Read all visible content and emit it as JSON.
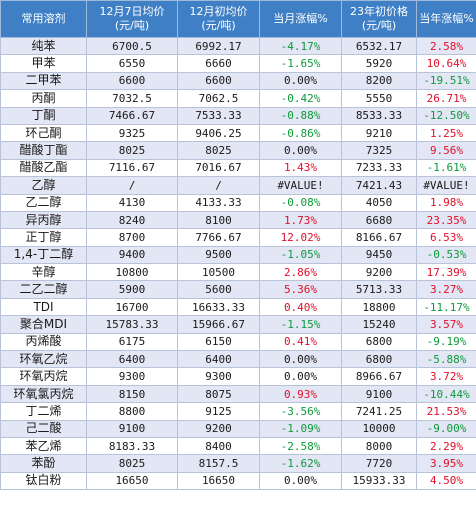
{
  "headers": [
    [
      "常用溶剂"
    ],
    [
      "12月7日均价",
      "(元/吨)"
    ],
    [
      "12月初均价",
      "(元/吨)"
    ],
    [
      "当月涨幅%"
    ],
    [
      "23年初价格",
      "(元/吨)"
    ],
    [
      "当年涨幅%"
    ]
  ],
  "rows": [
    {
      "name": "纯苯",
      "c1": "6700.5",
      "c2": "6992.17",
      "c3": "-4.17%",
      "d3": "down",
      "c4": "6532.17",
      "c5": "2.58%",
      "d5": "up"
    },
    {
      "name": "甲苯",
      "c1": "6550",
      "c2": "6660",
      "c3": "-1.65%",
      "d3": "down",
      "c4": "5920",
      "c5": "10.64%",
      "d5": "up"
    },
    {
      "name": "二甲苯",
      "c1": "6600",
      "c2": "6600",
      "c3": "0.00%",
      "d3": "flat",
      "c4": "8200",
      "c5": "-19.51%",
      "d5": "down"
    },
    {
      "name": "丙酮",
      "c1": "7032.5",
      "c2": "7062.5",
      "c3": "-0.42%",
      "d3": "down",
      "c4": "5550",
      "c5": "26.71%",
      "d5": "up"
    },
    {
      "name": "丁酮",
      "c1": "7466.67",
      "c2": "7533.33",
      "c3": "-0.88%",
      "d3": "down",
      "c4": "8533.33",
      "c5": "-12.50%",
      "d5": "down"
    },
    {
      "name": "环己酮",
      "c1": "9325",
      "c2": "9406.25",
      "c3": "-0.86%",
      "d3": "down",
      "c4": "9210",
      "c5": "1.25%",
      "d5": "up"
    },
    {
      "name": "醋酸丁酯",
      "c1": "8025",
      "c2": "8025",
      "c3": "0.00%",
      "d3": "flat",
      "c4": "7325",
      "c5": "9.56%",
      "d5": "up"
    },
    {
      "name": "醋酸乙酯",
      "c1": "7116.67",
      "c2": "7016.67",
      "c3": "1.43%",
      "d3": "up",
      "c4": "7233.33",
      "c5": "-1.61%",
      "d5": "down"
    },
    {
      "name": "乙醇",
      "c1": "/",
      "c2": "/",
      "c3": "#VALUE!",
      "d3": "flat",
      "c4": "7421.43",
      "c5": "#VALUE!",
      "d5": "flat"
    },
    {
      "name": "乙二醇",
      "c1": "4130",
      "c2": "4133.33",
      "c3": "-0.08%",
      "d3": "down",
      "c4": "4050",
      "c5": "1.98%",
      "d5": "up"
    },
    {
      "name": "异丙醇",
      "c1": "8240",
      "c2": "8100",
      "c3": "1.73%",
      "d3": "up",
      "c4": "6680",
      "c5": "23.35%",
      "d5": "up"
    },
    {
      "name": "正丁醇",
      "c1": "8700",
      "c2": "7766.67",
      "c3": "12.02%",
      "d3": "up",
      "c4": "8166.67",
      "c5": "6.53%",
      "d5": "up"
    },
    {
      "name": "1,4-丁二醇",
      "c1": "9400",
      "c2": "9500",
      "c3": "-1.05%",
      "d3": "down",
      "c4": "9450",
      "c5": "-0.53%",
      "d5": "down"
    },
    {
      "name": "辛醇",
      "c1": "10800",
      "c2": "10500",
      "c3": "2.86%",
      "d3": "up",
      "c4": "9200",
      "c5": "17.39%",
      "d5": "up"
    },
    {
      "name": "二乙二醇",
      "c1": "5900",
      "c2": "5600",
      "c3": "5.36%",
      "d3": "up",
      "c4": "5713.33",
      "c5": "3.27%",
      "d5": "up"
    },
    {
      "name": "TDI",
      "c1": "16700",
      "c2": "16633.33",
      "c3": "0.40%",
      "d3": "up",
      "c4": "18800",
      "c5": "-11.17%",
      "d5": "down"
    },
    {
      "name": "聚合MDI",
      "c1": "15783.33",
      "c2": "15966.67",
      "c3": "-1.15%",
      "d3": "down",
      "c4": "15240",
      "c5": "3.57%",
      "d5": "up"
    },
    {
      "name": "丙烯酸",
      "c1": "6175",
      "c2": "6150",
      "c3": "0.41%",
      "d3": "up",
      "c4": "6800",
      "c5": "-9.19%",
      "d5": "down"
    },
    {
      "name": "环氧乙烷",
      "c1": "6400",
      "c2": "6400",
      "c3": "0.00%",
      "d3": "flat",
      "c4": "6800",
      "c5": "-5.88%",
      "d5": "down"
    },
    {
      "name": "环氧丙烷",
      "c1": "9300",
      "c2": "9300",
      "c3": "0.00%",
      "d3": "flat",
      "c4": "8966.67",
      "c5": "3.72%",
      "d5": "up"
    },
    {
      "name": "环氧氯丙烷",
      "c1": "8150",
      "c2": "8075",
      "c3": "0.93%",
      "d3": "up",
      "c4": "9100",
      "c5": "-10.44%",
      "d5": "down"
    },
    {
      "name": "丁二烯",
      "c1": "8800",
      "c2": "9125",
      "c3": "-3.56%",
      "d3": "down",
      "c4": "7241.25",
      "c5": "21.53%",
      "d5": "up"
    },
    {
      "name": "己二酸",
      "c1": "9100",
      "c2": "9200",
      "c3": "-1.09%",
      "d3": "down",
      "c4": "10000",
      "c5": "-9.00%",
      "d5": "down"
    },
    {
      "name": "苯乙烯",
      "c1": "8183.33",
      "c2": "8400",
      "c3": "-2.58%",
      "d3": "down",
      "c4": "8000",
      "c5": "2.29%",
      "d5": "up"
    },
    {
      "name": "苯酚",
      "c1": "8025",
      "c2": "8157.5",
      "c3": "-1.62%",
      "d3": "down",
      "c4": "7720",
      "c5": "3.95%",
      "d5": "up"
    },
    {
      "name": "钛白粉",
      "c1": "16650",
      "c2": "16650",
      "c3": "0.00%",
      "d3": "flat",
      "c4": "15933.33",
      "c5": "4.50%",
      "d5": "up"
    }
  ],
  "colors": {
    "header_bg": "#3f7fc6",
    "row_alt_bg": "#e3e6f4",
    "up": "#e0102a",
    "down": "#0e9a3a"
  }
}
